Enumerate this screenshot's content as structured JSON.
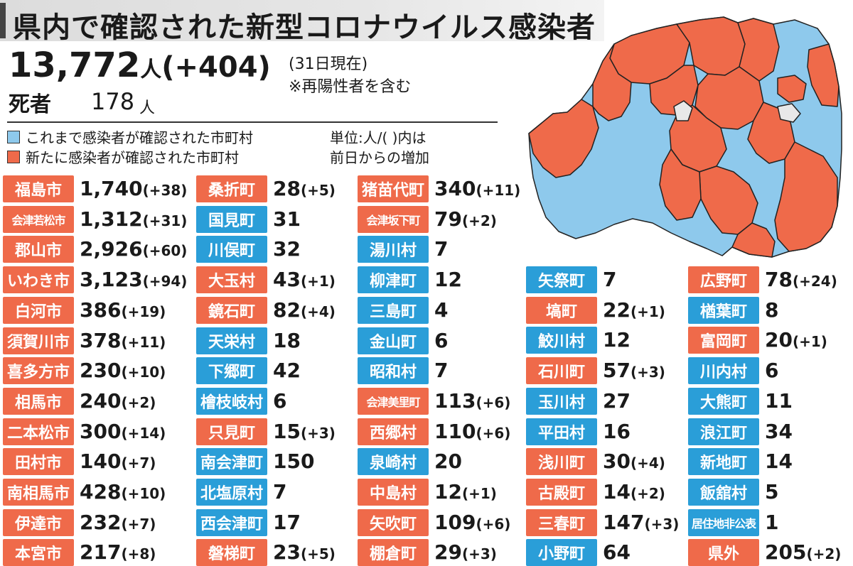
{
  "title": "県内で確認された新型コロナウイルス感染者",
  "total": {
    "count": "13,772",
    "unit": "人",
    "diff": "(+404)",
    "as_of": "(31日現在)",
    "note": "※再陽性者を含む"
  },
  "deaths": {
    "label": "死者",
    "count": "178",
    "unit": "人"
  },
  "legend": {
    "prev_label": "これまで感染者が確認された市町村",
    "new_label": "新たに感染者が確認された市町村",
    "unit_line1": "単位:人/(  )内は",
    "unit_line2": "前日からの増加"
  },
  "colors": {
    "new": "#ef6a4a",
    "prev": "#2a9ed8",
    "map_prev": "#8ec9ec",
    "map_new": "#ef6a4a",
    "map_none": "#e8e8e8"
  },
  "columns": [
    [
      {
        "name": "福島市",
        "count": "1,740",
        "diff": "(+38)",
        "status": "new"
      },
      {
        "name": "会津若松市",
        "count": "1,312",
        "diff": "(+31)",
        "status": "new"
      },
      {
        "name": "郡山市",
        "count": "2,926",
        "diff": "(+60)",
        "status": "new"
      },
      {
        "name": "いわき市",
        "count": "3,123",
        "diff": "(+94)",
        "status": "new"
      },
      {
        "name": "白河市",
        "count": "386",
        "diff": "(+19)",
        "status": "new"
      },
      {
        "name": "須賀川市",
        "count": "378",
        "diff": "(+11)",
        "status": "new"
      },
      {
        "name": "喜多方市",
        "count": "230",
        "diff": "(+10)",
        "status": "new"
      },
      {
        "name": "相馬市",
        "count": "240",
        "diff": "(+2)",
        "status": "new"
      },
      {
        "name": "二本松市",
        "count": "300",
        "diff": "(+14)",
        "status": "new"
      },
      {
        "name": "田村市",
        "count": "140",
        "diff": "(+7)",
        "status": "new"
      },
      {
        "name": "南相馬市",
        "count": "428",
        "diff": "(+10)",
        "status": "new"
      },
      {
        "name": "伊達市",
        "count": "232",
        "diff": "(+7)",
        "status": "new"
      },
      {
        "name": "本宮市",
        "count": "217",
        "diff": "(+8)",
        "status": "new"
      }
    ],
    [
      {
        "name": "桑折町",
        "count": "28",
        "diff": "(+5)",
        "status": "new"
      },
      {
        "name": "国見町",
        "count": "31",
        "diff": "",
        "status": "prev"
      },
      {
        "name": "川俣町",
        "count": "32",
        "diff": "",
        "status": "prev"
      },
      {
        "name": "大玉村",
        "count": "43",
        "diff": "(+1)",
        "status": "new"
      },
      {
        "name": "鏡石町",
        "count": "82",
        "diff": "(+4)",
        "status": "new"
      },
      {
        "name": "天栄村",
        "count": "18",
        "diff": "",
        "status": "prev"
      },
      {
        "name": "下郷町",
        "count": "42",
        "diff": "",
        "status": "prev"
      },
      {
        "name": "檜枝岐村",
        "count": "6",
        "diff": "",
        "status": "prev"
      },
      {
        "name": "只見町",
        "count": "15",
        "diff": "(+3)",
        "status": "new"
      },
      {
        "name": "南会津町",
        "count": "150",
        "diff": "",
        "status": "prev"
      },
      {
        "name": "北塩原村",
        "count": "7",
        "diff": "",
        "status": "prev"
      },
      {
        "name": "西会津町",
        "count": "17",
        "diff": "",
        "status": "prev"
      },
      {
        "name": "磐梯町",
        "count": "23",
        "diff": "(+5)",
        "status": "new"
      }
    ],
    [
      {
        "name": "猪苗代町",
        "count": "340",
        "diff": "(+11)",
        "status": "new"
      },
      {
        "name": "会津坂下町",
        "count": "79",
        "diff": "(+2)",
        "status": "new"
      },
      {
        "name": "湯川村",
        "count": "7",
        "diff": "",
        "status": "prev"
      },
      {
        "name": "柳津町",
        "count": "12",
        "diff": "",
        "status": "prev"
      },
      {
        "name": "三島町",
        "count": "4",
        "diff": "",
        "status": "prev"
      },
      {
        "name": "金山町",
        "count": "6",
        "diff": "",
        "status": "prev"
      },
      {
        "name": "昭和村",
        "count": "7",
        "diff": "",
        "status": "prev"
      },
      {
        "name": "会津美里町",
        "count": "113",
        "diff": "(+6)",
        "status": "new"
      },
      {
        "name": "西郷村",
        "count": "110",
        "diff": "(+6)",
        "status": "new"
      },
      {
        "name": "泉崎村",
        "count": "20",
        "diff": "",
        "status": "prev"
      },
      {
        "name": "中島村",
        "count": "12",
        "diff": "(+1)",
        "status": "new"
      },
      {
        "name": "矢吹町",
        "count": "109",
        "diff": "(+6)",
        "status": "new"
      },
      {
        "name": "棚倉町",
        "count": "29",
        "diff": "(+3)",
        "status": "new"
      }
    ],
    [
      {
        "name": "矢祭町",
        "count": "7",
        "diff": "",
        "status": "prev"
      },
      {
        "name": "塙町",
        "count": "22",
        "diff": "(+1)",
        "status": "new"
      },
      {
        "name": "鮫川村",
        "count": "12",
        "diff": "",
        "status": "prev"
      },
      {
        "name": "石川町",
        "count": "57",
        "diff": "(+3)",
        "status": "new"
      },
      {
        "name": "玉川村",
        "count": "27",
        "diff": "",
        "status": "prev"
      },
      {
        "name": "平田村",
        "count": "16",
        "diff": "",
        "status": "prev"
      },
      {
        "name": "浅川町",
        "count": "30",
        "diff": "(+4)",
        "status": "new"
      },
      {
        "name": "古殿町",
        "count": "14",
        "diff": "(+2)",
        "status": "new"
      },
      {
        "name": "三春町",
        "count": "147",
        "diff": "(+3)",
        "status": "new"
      },
      {
        "name": "小野町",
        "count": "64",
        "diff": "",
        "status": "prev"
      }
    ],
    [
      {
        "name": "広野町",
        "count": "78",
        "diff": "(+24)",
        "status": "new"
      },
      {
        "name": "楢葉町",
        "count": "8",
        "diff": "",
        "status": "prev"
      },
      {
        "name": "富岡町",
        "count": "20",
        "diff": "(+1)",
        "status": "new"
      },
      {
        "name": "川内村",
        "count": "6",
        "diff": "",
        "status": "prev"
      },
      {
        "name": "大熊町",
        "count": "11",
        "diff": "",
        "status": "prev"
      },
      {
        "name": "浪江町",
        "count": "34",
        "diff": "",
        "status": "prev"
      },
      {
        "name": "新地町",
        "count": "14",
        "diff": "",
        "status": "prev"
      },
      {
        "name": "飯舘村",
        "count": "5",
        "diff": "",
        "status": "prev"
      },
      {
        "name": "居住地非公表",
        "count": "1",
        "diff": "",
        "status": "prev"
      },
      {
        "name": "県外",
        "count": "205",
        "diff": "(+2)",
        "status": "new"
      }
    ]
  ]
}
